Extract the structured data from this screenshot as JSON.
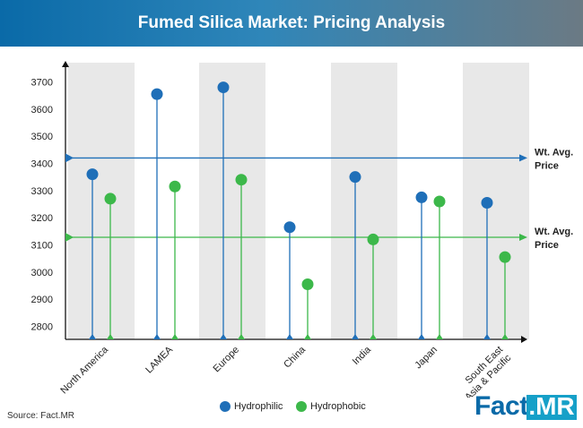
{
  "title": "Fumed Silica Market: Pricing Analysis",
  "source": "Source: Fact.MR",
  "logo": {
    "fact": "Fact",
    "mr": ".MR"
  },
  "legend": {
    "hydrophilic": "Hydrophilic",
    "hydrophobic": "Hydrophobic"
  },
  "avg_label": {
    "line1": "Wt. Avg.",
    "line2": "Price"
  },
  "colors": {
    "hydrophilic": "#1f6fb8",
    "hydrophobic": "#3cb84a",
    "band": "#e8e8e8",
    "axis": "#111111"
  },
  "chart_data": {
    "type": "scatter",
    "categories": [
      "North America",
      "LAMEA",
      "Europe",
      "China",
      "India",
      "Japan",
      "South East Asia & Pacific"
    ],
    "series": [
      {
        "name": "Hydrophilic",
        "values": [
          3360,
          3655,
          3680,
          3165,
          3350,
          3275,
          3255
        ]
      },
      {
        "name": "Hydrophobic",
        "values": [
          3270,
          3315,
          3340,
          2955,
          3120,
          3260,
          3055
        ]
      }
    ],
    "reference_lines": [
      {
        "series": "Hydrophilic",
        "label": "Wt. Avg. Price",
        "value": 3420
      },
      {
        "series": "Hydrophobic",
        "label": "Wt. Avg. Price",
        "value": 3128
      }
    ],
    "yticks": [
      2800,
      2900,
      3000,
      3100,
      3200,
      3300,
      3400,
      3500,
      3600,
      3700
    ],
    "ylim": [
      2760,
      3760
    ],
    "grid": false,
    "legend_position": "bottom"
  }
}
